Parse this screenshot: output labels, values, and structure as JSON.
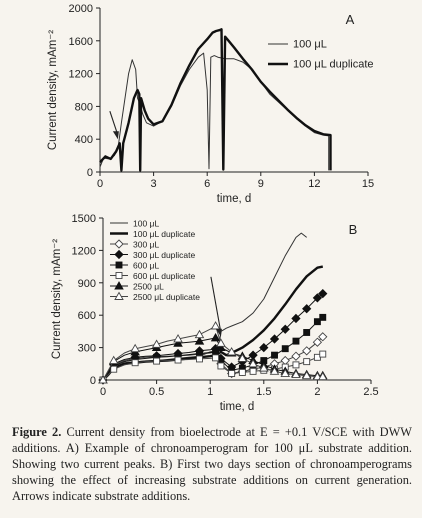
{
  "caption": {
    "label": "Figure 2.",
    "text": " Current density from bioelectrode at E = +0.1 V/SCE with DWW additions. A) Example of chronoamperogram for 100 μL substrate addition. Showing two current peaks. B) First two days section of chronoamperograms showing the effect of increasing substrate additions on current generation. Arrows indicate substrate additions."
  },
  "chart_data": [
    {
      "panel": "A",
      "type": "line",
      "xlabel": "time, d",
      "ylabel": "Current density, mAm⁻²",
      "xlim": [
        0,
        15
      ],
      "ylim": [
        0,
        2000
      ],
      "xticks": [
        0,
        3,
        6,
        9,
        12,
        15
      ],
      "yticks": [
        0,
        400,
        800,
        1200,
        1600,
        2000
      ],
      "legend_position": "top-right",
      "annotations": [
        {
          "type": "arrow",
          "x": 1.0,
          "y": 400
        }
      ],
      "series": [
        {
          "name": "100 μL",
          "style": "thin",
          "color": "#333333",
          "x": [
            0,
            0.2,
            0.5,
            0.8,
            1.0,
            1.2,
            1.4,
            1.6,
            1.8,
            2.0,
            2.1,
            2.2,
            2.4,
            2.6,
            2.8,
            3.0,
            3.5,
            4.0,
            4.5,
            5.0,
            5.5,
            5.8,
            6.0,
            6.1,
            6.2,
            6.4,
            6.6,
            6.8,
            7.0,
            7.5,
            8.0,
            8.5,
            9.0,
            9.5,
            10.0,
            10.5,
            11.0,
            11.5,
            12.0,
            12.5,
            12.8,
            12.8
          ],
          "y": [
            60,
            170,
            160,
            200,
            280,
            600,
            900,
            1200,
            1370,
            1250,
            900,
            850,
            700,
            600,
            580,
            560,
            620,
            800,
            1050,
            1250,
            1400,
            1450,
            1000,
            40,
            1400,
            1420,
            1400,
            1390,
            1380,
            1380,
            1340,
            1250,
            1100,
            950,
            850,
            750,
            650,
            560,
            480,
            450,
            440,
            20
          ]
        },
        {
          "name": "100 μL duplicate",
          "style": "thick",
          "color": "#111111",
          "x": [
            0,
            0.3,
            0.6,
            0.9,
            1.1,
            1.2,
            1.3,
            1.6,
            1.9,
            2.1,
            2.2,
            2.25,
            2.3,
            2.5,
            2.7,
            3.0,
            3.5,
            4.0,
            4.5,
            5.0,
            5.5,
            6.0,
            6.3,
            6.5,
            6.7,
            6.8,
            6.9,
            7.0,
            7.2,
            7.5,
            8.0,
            8.5,
            9.0,
            9.5,
            10.0,
            10.5,
            11.0,
            11.5,
            12.0,
            12.5,
            12.9,
            12.9
          ],
          "y": [
            120,
            190,
            160,
            250,
            350,
            20,
            350,
            600,
            900,
            1000,
            950,
            20,
            900,
            750,
            650,
            580,
            620,
            820,
            1080,
            1300,
            1500,
            1620,
            1700,
            1720,
            1730,
            1740,
            30,
            1650,
            1600,
            1520,
            1380,
            1250,
            1100,
            980,
            870,
            760,
            660,
            570,
            500,
            460,
            450,
            20
          ]
        }
      ]
    },
    {
      "panel": "B",
      "type": "line",
      "xlabel": "time, d",
      "ylabel": "Current density, mAm⁻²",
      "xlim": [
        0,
        2.5
      ],
      "ylim": [
        0,
        1500
      ],
      "xticks": [
        0,
        0.5,
        1,
        1.5,
        2,
        2.5
      ],
      "yticks": [
        0,
        300,
        600,
        900,
        1200,
        1500
      ],
      "legend_position": "top-left",
      "annotations": [
        {
          "type": "arrow",
          "x": 1.1,
          "y": 400
        }
      ],
      "series": [
        {
          "name": "100 μL",
          "style": "thin",
          "marker": "none",
          "color": "#333333",
          "x": [
            0,
            0.05,
            0.1,
            0.2,
            0.3,
            0.4,
            0.5,
            0.6,
            0.7,
            0.8,
            0.9,
            1.0,
            1.05,
            1.08,
            1.1,
            1.15,
            1.2,
            1.3,
            1.4,
            1.5,
            1.6,
            1.7,
            1.8,
            1.85,
            1.9
          ],
          "y": [
            0,
            60,
            120,
            160,
            170,
            175,
            180,
            190,
            200,
            210,
            220,
            260,
            270,
            300,
            450,
            480,
            500,
            540,
            620,
            750,
            950,
            1150,
            1320,
            1360,
            1320
          ]
        },
        {
          "name": "100 μL duplicate",
          "style": "thick",
          "marker": "none",
          "color": "#111111",
          "x": [
            0,
            0.05,
            0.1,
            0.2,
            0.3,
            0.4,
            0.5,
            0.6,
            0.7,
            0.8,
            0.9,
            1.0,
            1.05,
            1.1,
            1.15,
            1.2,
            1.3,
            1.4,
            1.5,
            1.6,
            1.7,
            1.8,
            1.9,
            2.0,
            2.05
          ],
          "y": [
            0,
            50,
            110,
            150,
            160,
            170,
            175,
            180,
            190,
            200,
            210,
            220,
            230,
            260,
            230,
            250,
            300,
            370,
            460,
            570,
            700,
            840,
            960,
            1040,
            1050
          ]
        },
        {
          "name": "300 μL",
          "style": "thin",
          "marker": "diamond-open",
          "color": "#444444",
          "x": [
            0,
            0.05,
            0.1,
            0.2,
            0.3,
            0.4,
            0.5,
            0.6,
            0.7,
            0.8,
            0.9,
            1.0,
            1.05,
            1.1,
            1.2,
            1.3,
            1.4,
            1.5,
            1.6,
            1.7,
            1.8,
            1.9,
            2.0,
            2.05
          ],
          "y": [
            0,
            60,
            140,
            180,
            200,
            210,
            215,
            220,
            225,
            230,
            240,
            250,
            260,
            150,
            60,
            80,
            100,
            120,
            150,
            180,
            220,
            270,
            350,
            400
          ]
        },
        {
          "name": "300 μL duplicate",
          "style": "thin",
          "marker": "diamond-filled",
          "color": "#111111",
          "x": [
            0,
            0.05,
            0.1,
            0.2,
            0.3,
            0.4,
            0.5,
            0.6,
            0.7,
            0.8,
            0.9,
            1.0,
            1.05,
            1.1,
            1.2,
            1.3,
            1.4,
            1.5,
            1.6,
            1.7,
            1.8,
            1.9,
            2.0,
            2.05
          ],
          "y": [
            0,
            70,
            150,
            190,
            210,
            220,
            225,
            235,
            245,
            255,
            270,
            280,
            290,
            200,
            120,
            170,
            230,
            300,
            380,
            470,
            570,
            660,
            760,
            800
          ]
        },
        {
          "name": "600 μL",
          "style": "thin",
          "marker": "square-filled",
          "color": "#111111",
          "x": [
            0,
            0.05,
            0.1,
            0.2,
            0.3,
            0.4,
            0.5,
            0.6,
            0.7,
            0.8,
            0.9,
            1.0,
            1.05,
            1.1,
            1.2,
            1.3,
            1.4,
            1.5,
            1.6,
            1.7,
            1.8,
            1.9,
            2.0,
            2.05
          ],
          "y": [
            0,
            60,
            130,
            170,
            190,
            200,
            210,
            215,
            225,
            235,
            245,
            255,
            260,
            180,
            90,
            110,
            140,
            180,
            230,
            290,
            360,
            440,
            540,
            580
          ]
        },
        {
          "name": "600 μL duplicate",
          "style": "thin",
          "marker": "square-open",
          "color": "#444444",
          "x": [
            0,
            0.05,
            0.1,
            0.2,
            0.3,
            0.4,
            0.5,
            0.6,
            0.7,
            0.8,
            0.9,
            1.0,
            1.05,
            1.1,
            1.2,
            1.3,
            1.4,
            1.5,
            1.6,
            1.7,
            1.8,
            1.9,
            2.0,
            2.05
          ],
          "y": [
            0,
            50,
            100,
            140,
            160,
            170,
            175,
            180,
            185,
            190,
            195,
            200,
            205,
            130,
            60,
            70,
            80,
            90,
            100,
            120,
            140,
            170,
            210,
            240
          ]
        },
        {
          "name": "2500 μL",
          "style": "thin",
          "marker": "triangle-filled",
          "color": "#111111",
          "x": [
            0,
            0.05,
            0.1,
            0.2,
            0.3,
            0.4,
            0.5,
            0.6,
            0.7,
            0.8,
            0.9,
            1.0,
            1.05,
            1.1,
            1.2,
            1.3,
            1.4,
            1.5,
            1.6,
            1.7,
            1.8,
            1.9,
            2.0,
            2.05
          ],
          "y": [
            0,
            80,
            170,
            230,
            260,
            280,
            300,
            320,
            340,
            350,
            360,
            380,
            390,
            300,
            250,
            220,
            180,
            140,
            100,
            80,
            60,
            50,
            40,
            40
          ]
        },
        {
          "name": "2500 μL duplicate",
          "style": "thin",
          "marker": "triangle-open",
          "color": "#444444",
          "x": [
            0,
            0.05,
            0.1,
            0.2,
            0.3,
            0.4,
            0.5,
            0.6,
            0.7,
            0.8,
            0.9,
            1.0,
            1.05,
            1.1,
            1.2,
            1.3,
            1.4,
            1.5,
            1.6,
            1.7,
            1.8,
            1.9,
            2.0,
            2.05
          ],
          "y": [
            0,
            90,
            180,
            250,
            290,
            310,
            330,
            360,
            380,
            400,
            420,
            470,
            500,
            340,
            260,
            200,
            150,
            110,
            80,
            60,
            50,
            40,
            30,
            30
          ]
        }
      ]
    }
  ]
}
